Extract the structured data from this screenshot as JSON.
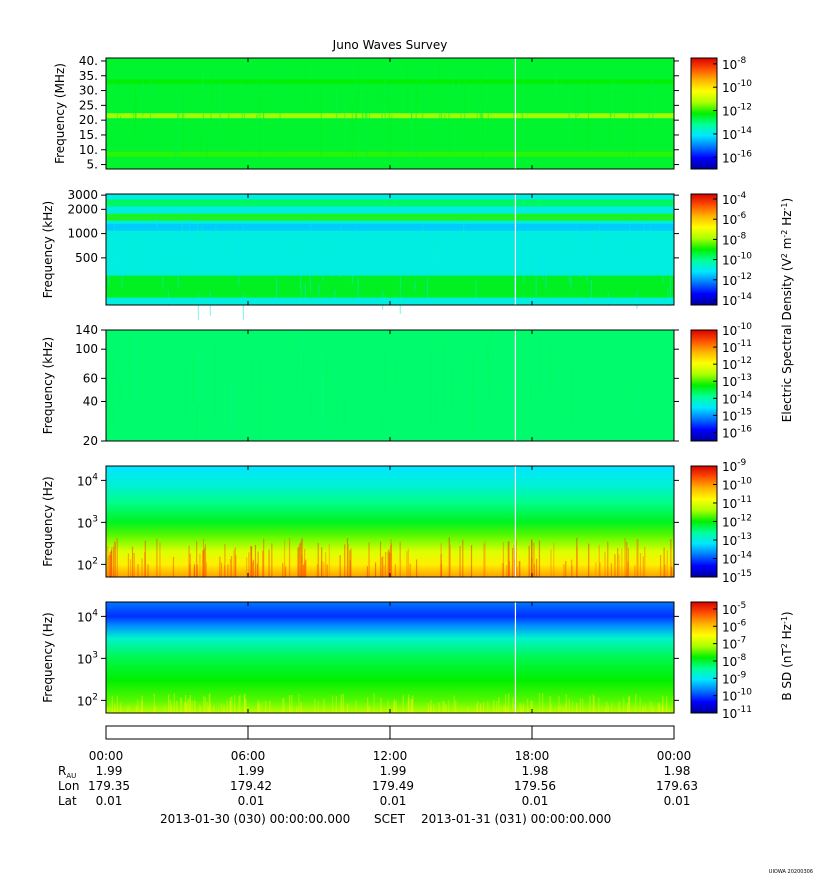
{
  "title": "Juno Waves Survey",
  "watermark": "UIOWA 20200306",
  "colormap": [
    "#00009c",
    "#0000ff",
    "#0078ff",
    "#00e6ff",
    "#00ff9a",
    "#00f000",
    "#aaff00",
    "#ffff00",
    "#ffb400",
    "#ff5000",
    "#d80000"
  ],
  "chart_data": [
    {
      "type": "heatmap",
      "name": "panel-1",
      "ylabel": "Frequency (MHz)",
      "yscale": "linear",
      "yticks": [
        "40.",
        "35.",
        "30.",
        "25.",
        "20.",
        "15.",
        "10.",
        "5."
      ],
      "ytick_values": [
        40,
        35,
        30,
        25,
        20,
        15,
        10,
        5
      ],
      "ylim": [
        3.5,
        41
      ],
      "base_level": 0.47,
      "bands": [
        {
          "center": 21.5,
          "level": 0.62
        },
        {
          "center": 8.5,
          "level": 0.53
        },
        {
          "center": 33,
          "level": 0.5
        }
      ],
      "colorbar_ticks": [
        "-8",
        "-10",
        "-12",
        "-14",
        "-16"
      ],
      "colorbar_exponents": [
        -8,
        -10,
        -12,
        -14,
        -16
      ],
      "colorbar_range": [
        -17,
        -7.5
      ]
    },
    {
      "type": "heatmap",
      "name": "panel-2",
      "ylabel": "Frequency (kHz)",
      "yscale": "log",
      "yticks": [
        "3000",
        "2000",
        "1000",
        "500"
      ],
      "ytick_values": [
        3000,
        2000,
        1000,
        500
      ],
      "ylim": [
        130,
        3100
      ],
      "base_level": 0.33,
      "bands": [
        {
          "center": 1600,
          "level": 0.52
        },
        {
          "center": 2400,
          "level": 0.45
        },
        {
          "center": 220,
          "level": 0.5
        },
        {
          "center": 1200,
          "level": 0.27
        }
      ],
      "colorbar_ticks": [
        "-4",
        "-6",
        "-8",
        "-10",
        "-12",
        "-14"
      ],
      "colorbar_exponents": [
        -4,
        -6,
        -8,
        -10,
        -12,
        -14
      ],
      "colorbar_range": [
        -14.5,
        -3.5
      ]
    },
    {
      "type": "heatmap",
      "name": "panel-3",
      "ylabel": "Frequency (kHz)",
      "yscale": "log",
      "yticks": [
        "140",
        "100",
        "60",
        "40",
        "20"
      ],
      "ytick_values": [
        140,
        100,
        60,
        40,
        20
      ],
      "ylim": [
        20,
        140
      ],
      "base_level": 0.43,
      "bands": [],
      "colorbar_ticks": [
        "-10",
        "-11",
        "-12",
        "-13",
        "-14",
        "-15",
        "-16"
      ],
      "colorbar_exponents": [
        -10,
        -11,
        -12,
        -13,
        -14,
        -15,
        -16
      ],
      "colorbar_range": [
        -16.5,
        -10
      ]
    },
    {
      "type": "heatmap",
      "name": "panel-4",
      "ylabel": "Frequency (Hz)",
      "yscale": "log",
      "yticks": [
        "4",
        "3",
        "2"
      ],
      "ytick_values": [
        10000,
        1000,
        100
      ],
      "ylim": [
        50,
        22000
      ],
      "gradient": [
        [
          50,
          0.82
        ],
        [
          100,
          0.72
        ],
        [
          200,
          0.66
        ],
        [
          500,
          0.55
        ],
        [
          1000,
          0.48
        ],
        [
          3000,
          0.41
        ],
        [
          8000,
          0.34
        ],
        [
          22000,
          0.3
        ]
      ],
      "colorbar_ticks": [
        "-9",
        "-10",
        "-11",
        "-12",
        "-13",
        "-14",
        "-15"
      ],
      "colorbar_exponents": [
        -9,
        -10,
        -11,
        -12,
        -13,
        -14,
        -15
      ],
      "colorbar_range": [
        -15,
        -9
      ]
    },
    {
      "type": "heatmap",
      "name": "panel-5",
      "ylabel": "Frequency (Hz)",
      "yscale": "log",
      "yticks": [
        "4",
        "3",
        "2"
      ],
      "ytick_values": [
        10000,
        1000,
        100
      ],
      "ylim": [
        50,
        22000
      ],
      "gradient": [
        [
          50,
          0.62
        ],
        [
          100,
          0.55
        ],
        [
          300,
          0.5
        ],
        [
          1000,
          0.45
        ],
        [
          3000,
          0.35
        ],
        [
          6000,
          0.22
        ],
        [
          10000,
          0.14
        ],
        [
          22000,
          0.2
        ]
      ],
      "colorbar_ticks": [
        "-5",
        "-6",
        "-7",
        "-8",
        "-9",
        "-10",
        "-11"
      ],
      "colorbar_exponents": [
        -5,
        -6,
        -7,
        -8,
        -9,
        -10,
        -11
      ],
      "colorbar_range": [
        -11,
        -4.6
      ]
    }
  ],
  "colorbar_labels": {
    "efield": {
      "a": "Electric Spectral Density (V",
      "b": " m",
      "c": " Hz",
      "d": ")"
    },
    "bfield": {
      "a": "B SD (nT",
      "b": " Hz",
      "c": ")"
    }
  },
  "x_axis": {
    "times": [
      "00:00",
      "06:00",
      "12:00",
      "18:00",
      "00:00"
    ],
    "time_values_hours": [
      0,
      6,
      12,
      18,
      24
    ],
    "gap_hour": 17.3,
    "rows": [
      {
        "label": "R",
        "label_sub": "AU",
        "values": [
          "1.99",
          "1.99",
          "1.99",
          "1.98",
          "1.98"
        ]
      },
      {
        "label": "Lon",
        "values": [
          "179.35",
          "179.42",
          "179.49",
          "179.56",
          "179.63"
        ]
      },
      {
        "label": "Lat",
        "values": [
          "0.01",
          "0.01",
          "0.01",
          "0.01",
          "0.01"
        ]
      }
    ],
    "start_label": "2013-01-30 (030) 00:00:00.000",
    "scet_label": "SCET",
    "end_label": "2013-01-31 (031) 00:00:00.000"
  }
}
